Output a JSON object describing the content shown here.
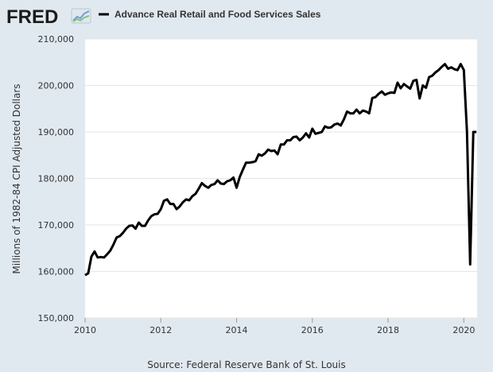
{
  "logo": {
    "text": "FRED"
  },
  "colors": {
    "background": "#e1e9f0",
    "plot_background": "#ffffff",
    "grid": "#e6e6e6",
    "series": "#000000",
    "text": "#333333"
  },
  "source": "Source: Federal Reserve Bank of St. Louis",
  "chart_data": {
    "type": "line",
    "title": "",
    "xlabel": "",
    "ylabel": "Millions of 1982-84 CPI Adjusted Dollars",
    "xlim": [
      2010,
      2020.35
    ],
    "ylim": [
      150000,
      210000
    ],
    "x_ticks": [
      2010,
      2012,
      2014,
      2016,
      2018,
      2020
    ],
    "x_tick_labels": [
      "2010",
      "2012",
      "2014",
      "2016",
      "2018",
      "2020"
    ],
    "y_ticks": [
      150000,
      160000,
      170000,
      180000,
      190000,
      200000,
      210000
    ],
    "y_tick_labels": [
      "150,000",
      "160,000",
      "170,000",
      "180,000",
      "190,000",
      "200,000",
      "210,000"
    ],
    "grid": true,
    "legend": {
      "position": "top-left",
      "entries": [
        "Advance Real Retail and Food Services Sales"
      ]
    },
    "series": [
      {
        "name": "Advance Real Retail and Food Services Sales",
        "x": [
          2010.0,
          2010.083,
          2010.167,
          2010.25,
          2010.333,
          2010.417,
          2010.5,
          2010.583,
          2010.667,
          2010.75,
          2010.833,
          2010.917,
          2011.0,
          2011.083,
          2011.167,
          2011.25,
          2011.333,
          2011.417,
          2011.5,
          2011.583,
          2011.667,
          2011.75,
          2011.833,
          2011.917,
          2012.0,
          2012.083,
          2012.167,
          2012.25,
          2012.333,
          2012.417,
          2012.5,
          2012.583,
          2012.667,
          2012.75,
          2012.833,
          2012.917,
          2013.0,
          2013.083,
          2013.167,
          2013.25,
          2013.333,
          2013.417,
          2013.5,
          2013.583,
          2013.667,
          2013.75,
          2013.833,
          2013.917,
          2014.0,
          2014.083,
          2014.167,
          2014.25,
          2014.333,
          2014.417,
          2014.5,
          2014.583,
          2014.667,
          2014.75,
          2014.833,
          2014.917,
          2015.0,
          2015.083,
          2015.167,
          2015.25,
          2015.333,
          2015.417,
          2015.5,
          2015.583,
          2015.667,
          2015.75,
          2015.833,
          2015.917,
          2016.0,
          2016.083,
          2016.167,
          2016.25,
          2016.333,
          2016.417,
          2016.5,
          2016.583,
          2016.667,
          2016.75,
          2016.833,
          2016.917,
          2017.0,
          2017.083,
          2017.167,
          2017.25,
          2017.333,
          2017.417,
          2017.5,
          2017.583,
          2017.667,
          2017.75,
          2017.833,
          2017.917,
          2018.0,
          2018.083,
          2018.167,
          2018.25,
          2018.333,
          2018.417,
          2018.5,
          2018.583,
          2018.667,
          2018.75,
          2018.833,
          2018.917,
          2019.0,
          2019.083,
          2019.167,
          2019.25,
          2019.333,
          2019.417,
          2019.5,
          2019.583,
          2019.667,
          2019.75,
          2019.833,
          2019.917,
          2020.0,
          2020.083,
          2020.167,
          2020.25,
          2020.333
        ],
        "values": [
          159200,
          159600,
          163200,
          164300,
          163000,
          163100,
          163000,
          163700,
          164500,
          165800,
          167300,
          167600,
          168300,
          169200,
          169800,
          169900,
          169200,
          170500,
          169800,
          169800,
          171000,
          171900,
          172300,
          172400,
          173400,
          175200,
          175500,
          174500,
          174500,
          173400,
          174000,
          174900,
          175500,
          175300,
          176200,
          176700,
          177800,
          179000,
          178400,
          178000,
          178600,
          178800,
          179600,
          178900,
          178800,
          179400,
          179600,
          180200,
          178000,
          180300,
          181900,
          183400,
          183400,
          183500,
          183700,
          185200,
          184900,
          185400,
          186200,
          185900,
          186000,
          185200,
          187300,
          187300,
          188200,
          188200,
          188900,
          189000,
          188200,
          188800,
          189700,
          188800,
          190700,
          189600,
          189800,
          190000,
          191200,
          190900,
          191000,
          191600,
          191800,
          191400,
          192700,
          194400,
          194000,
          194000,
          194800,
          194000,
          194600,
          194400,
          194000,
          197300,
          197500,
          198200,
          198700,
          198000,
          198300,
          198500,
          198400,
          200600,
          199400,
          200300,
          199800,
          199300,
          201000,
          201200,
          197200,
          200000,
          199500,
          201800,
          202100,
          202800,
          203300,
          204000,
          204600,
          203600,
          203900,
          203500,
          203300,
          204600,
          203300,
          190000,
          161500,
          190000,
          190000
        ]
      }
    ]
  }
}
